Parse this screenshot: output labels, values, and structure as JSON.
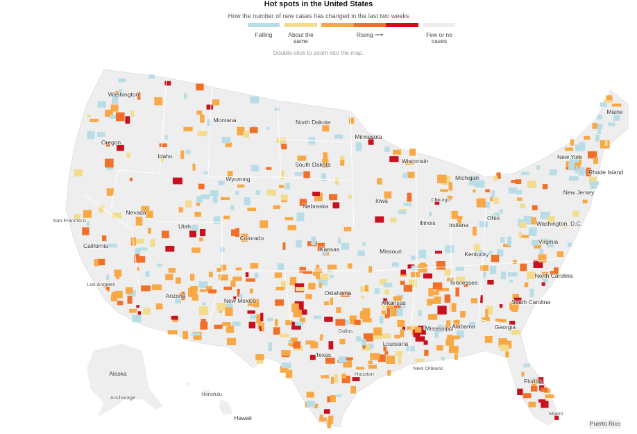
{
  "header": {
    "title": "Hot spots in the United States",
    "subtitle": "How the number of new cases has changed in the last two weeks",
    "legend": [
      {
        "label": "Falling",
        "colors": [
          "#b9dde6"
        ]
      },
      {
        "label": "About the same",
        "colors": [
          "#f3dc8e"
        ]
      },
      {
        "label": "Rising ⟶",
        "colors": [
          "#f8a845",
          "#f0702a",
          "#c8101e"
        ]
      },
      {
        "label": "Few or no cases",
        "colors": [
          "#eeeeee"
        ]
      }
    ],
    "note": "Double-click to zoom into the map."
  },
  "map": {
    "labels": [
      "Washington",
      "Montana",
      "North Dakota",
      "Minnesota",
      "Oregon",
      "Idaho",
      "South Dakota",
      "Wisconsin",
      "Wyoming",
      "Michigan",
      "Maine",
      "New York",
      "Rhode Island",
      "Nevada",
      "Nebraska",
      "Iowa",
      "Chicago",
      "New Jersey",
      "San Francisco",
      "Utah",
      "Illinois",
      "Indiana",
      "Ohio",
      "Washington, D.C.",
      "California",
      "Colorado",
      "Kansas",
      "Missouri",
      "Virginia",
      "Kentucky",
      "Los Angeles",
      "Arizona",
      "Oklahoma",
      "Tennessee",
      "North Carolina",
      "New Mexico",
      "Arkansas",
      "South Carolina",
      "Dallas",
      "Mississippi",
      "Alabama",
      "Georgia",
      "Texas",
      "Louisiana",
      "Houston",
      "New Orleans",
      "Florida",
      "Alaska",
      "Anchorage",
      "Honolulu",
      "Hawaii",
      "Miami",
      "Puerto Rico"
    ]
  }
}
